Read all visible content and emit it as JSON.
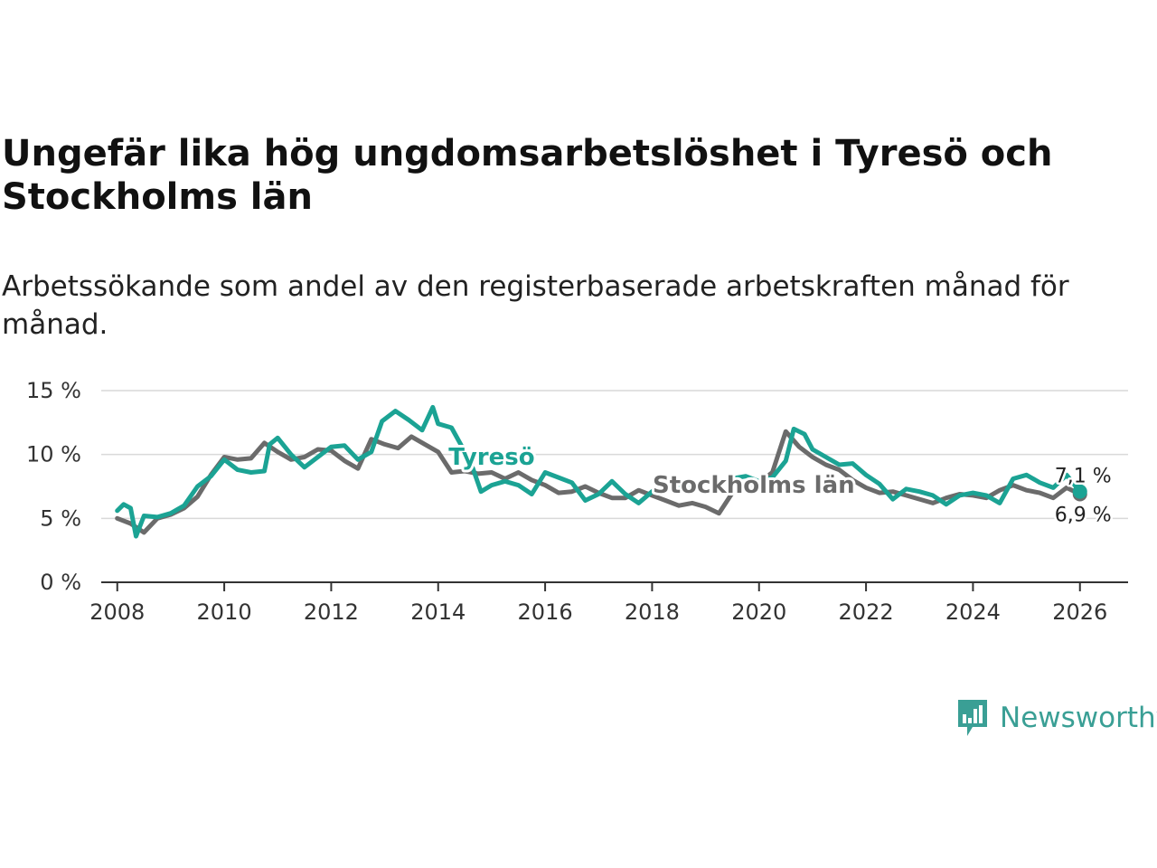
{
  "title": "Ungefär lika hög ungdomsarbetslöshet i Tyresö och Stockholms län",
  "subtitle": "Arbetssökande som andel av den registerbaserade arbetskraften månad för månad.",
  "brand": {
    "name": "Newsworthy",
    "icon": "newsworthy-logo-icon",
    "color": "#3a9f95"
  },
  "chart_data": {
    "type": "line",
    "title": "Ungefär lika hög ungdomsarbetslöshet i Tyresö och Stockholms län",
    "xlabel": "",
    "ylabel": "",
    "xlim": [
      2007.7,
      2026.9
    ],
    "ylim": [
      0,
      15
    ],
    "x_ticks": [
      2008,
      2010,
      2012,
      2014,
      2016,
      2018,
      2020,
      2022,
      2024,
      2026
    ],
    "x_tick_labels": [
      "2008",
      "2010",
      "2012",
      "2014",
      "2016",
      "2018",
      "2020",
      "2022",
      "2024",
      "2026"
    ],
    "y_ticks": [
      0,
      5,
      10,
      15
    ],
    "y_tick_labels": [
      "0 %",
      "5 %",
      "10 %",
      "15 %"
    ],
    "grid": true,
    "series": [
      {
        "name": "Stockholms län",
        "color": "#6b6b6b",
        "end_label": "6,9 %",
        "points": [
          [
            2008.0,
            5.0
          ],
          [
            2008.25,
            4.6
          ],
          [
            2008.5,
            3.9
          ],
          [
            2008.75,
            5.0
          ],
          [
            2009.0,
            5.3
          ],
          [
            2009.25,
            5.8
          ],
          [
            2009.5,
            6.7
          ],
          [
            2009.75,
            8.4
          ],
          [
            2010.0,
            9.8
          ],
          [
            2010.25,
            9.6
          ],
          [
            2010.5,
            9.7
          ],
          [
            2010.75,
            10.9
          ],
          [
            2011.0,
            10.2
          ],
          [
            2011.25,
            9.6
          ],
          [
            2011.5,
            9.8
          ],
          [
            2011.75,
            10.4
          ],
          [
            2012.0,
            10.3
          ],
          [
            2012.25,
            9.5
          ],
          [
            2012.5,
            8.9
          ],
          [
            2012.75,
            11.2
          ],
          [
            2013.0,
            10.8
          ],
          [
            2013.25,
            10.5
          ],
          [
            2013.5,
            11.4
          ],
          [
            2013.75,
            10.8
          ],
          [
            2014.0,
            10.2
          ],
          [
            2014.25,
            8.6
          ],
          [
            2014.5,
            8.7
          ],
          [
            2014.75,
            8.5
          ],
          [
            2015.0,
            8.6
          ],
          [
            2015.25,
            8.1
          ],
          [
            2015.5,
            8.6
          ],
          [
            2015.75,
            8.0
          ],
          [
            2016.0,
            7.6
          ],
          [
            2016.25,
            7.0
          ],
          [
            2016.5,
            7.1
          ],
          [
            2016.75,
            7.5
          ],
          [
            2017.0,
            7.0
          ],
          [
            2017.25,
            6.6
          ],
          [
            2017.5,
            6.6
          ],
          [
            2017.75,
            7.2
          ],
          [
            2018.0,
            6.8
          ],
          [
            2018.25,
            6.4
          ],
          [
            2018.5,
            6.0
          ],
          [
            2018.75,
            6.2
          ],
          [
            2019.0,
            5.9
          ],
          [
            2019.25,
            5.4
          ],
          [
            2019.5,
            7.0
          ],
          [
            2019.75,
            7.5
          ],
          [
            2020.0,
            7.8
          ],
          [
            2020.25,
            8.6
          ],
          [
            2020.5,
            11.8
          ],
          [
            2020.75,
            10.6
          ],
          [
            2021.0,
            9.8
          ],
          [
            2021.25,
            9.2
          ],
          [
            2021.5,
            8.8
          ],
          [
            2021.75,
            8.0
          ],
          [
            2022.0,
            7.4
          ],
          [
            2022.25,
            7.0
          ],
          [
            2022.5,
            7.1
          ],
          [
            2022.75,
            6.8
          ],
          [
            2023.0,
            6.5
          ],
          [
            2023.25,
            6.2
          ],
          [
            2023.5,
            6.6
          ],
          [
            2023.75,
            6.9
          ],
          [
            2024.0,
            6.8
          ],
          [
            2024.25,
            6.6
          ],
          [
            2024.5,
            7.2
          ],
          [
            2024.75,
            7.6
          ],
          [
            2025.0,
            7.2
          ],
          [
            2025.25,
            7.0
          ],
          [
            2025.5,
            6.6
          ],
          [
            2025.75,
            7.4
          ],
          [
            2026.0,
            6.9
          ]
        ]
      },
      {
        "name": "Tyresö",
        "color": "#1ba394",
        "end_label": "7,1 %",
        "points": [
          [
            2008.0,
            5.6
          ],
          [
            2008.12,
            6.1
          ],
          [
            2008.25,
            5.8
          ],
          [
            2008.35,
            3.6
          ],
          [
            2008.5,
            5.2
          ],
          [
            2008.75,
            5.1
          ],
          [
            2009.0,
            5.4
          ],
          [
            2009.25,
            6.0
          ],
          [
            2009.5,
            7.5
          ],
          [
            2009.75,
            8.3
          ],
          [
            2010.0,
            9.6
          ],
          [
            2010.25,
            8.8
          ],
          [
            2010.5,
            8.6
          ],
          [
            2010.75,
            8.7
          ],
          [
            2010.85,
            10.8
          ],
          [
            2011.0,
            11.3
          ],
          [
            2011.25,
            10.0
          ],
          [
            2011.5,
            9.0
          ],
          [
            2011.75,
            9.8
          ],
          [
            2012.0,
            10.6
          ],
          [
            2012.25,
            10.7
          ],
          [
            2012.5,
            9.6
          ],
          [
            2012.75,
            10.2
          ],
          [
            2012.95,
            12.6
          ],
          [
            2013.2,
            13.4
          ],
          [
            2013.45,
            12.7
          ],
          [
            2013.7,
            11.9
          ],
          [
            2013.9,
            13.7
          ],
          [
            2014.0,
            12.4
          ],
          [
            2014.25,
            12.1
          ],
          [
            2014.5,
            10.2
          ],
          [
            2014.65,
            8.9
          ],
          [
            2014.8,
            7.1
          ],
          [
            2015.0,
            7.6
          ],
          [
            2015.25,
            7.9
          ],
          [
            2015.5,
            7.6
          ],
          [
            2015.75,
            6.9
          ],
          [
            2016.0,
            8.6
          ],
          [
            2016.25,
            8.2
          ],
          [
            2016.5,
            7.8
          ],
          [
            2016.75,
            6.4
          ],
          [
            2017.0,
            6.9
          ],
          [
            2017.25,
            7.9
          ],
          [
            2017.5,
            6.9
          ],
          [
            2017.75,
            6.2
          ],
          [
            2018.0,
            7.1
          ],
          [
            2018.25,
            7.8
          ],
          [
            2018.5,
            7.4
          ],
          [
            2019.75,
            8.3
          ],
          [
            2020.0,
            7.9
          ],
          [
            2020.25,
            8.2
          ],
          [
            2020.5,
            9.5
          ],
          [
            2020.65,
            12.0
          ],
          [
            2020.85,
            11.6
          ],
          [
            2021.0,
            10.4
          ],
          [
            2021.25,
            9.8
          ],
          [
            2021.5,
            9.2
          ],
          [
            2021.75,
            9.3
          ],
          [
            2022.0,
            8.4
          ],
          [
            2022.25,
            7.7
          ],
          [
            2022.5,
            6.5
          ],
          [
            2022.75,
            7.3
          ],
          [
            2023.0,
            7.1
          ],
          [
            2023.25,
            6.8
          ],
          [
            2023.5,
            6.1
          ],
          [
            2023.75,
            6.8
          ],
          [
            2024.0,
            7.0
          ],
          [
            2024.25,
            6.8
          ],
          [
            2024.5,
            6.2
          ],
          [
            2024.75,
            8.1
          ],
          [
            2025.0,
            8.4
          ],
          [
            2025.25,
            7.8
          ],
          [
            2025.5,
            7.4
          ],
          [
            2025.75,
            8.4
          ],
          [
            2026.0,
            7.1
          ]
        ]
      }
    ],
    "annotations": [
      {
        "text": "Tyresö",
        "series": "Tyresö",
        "at": [
          2015.0,
          9.2
        ]
      },
      {
        "text": "Stockholms län",
        "series": "Stockholms län",
        "at": [
          2019.9,
          7.0
        ]
      }
    ]
  }
}
